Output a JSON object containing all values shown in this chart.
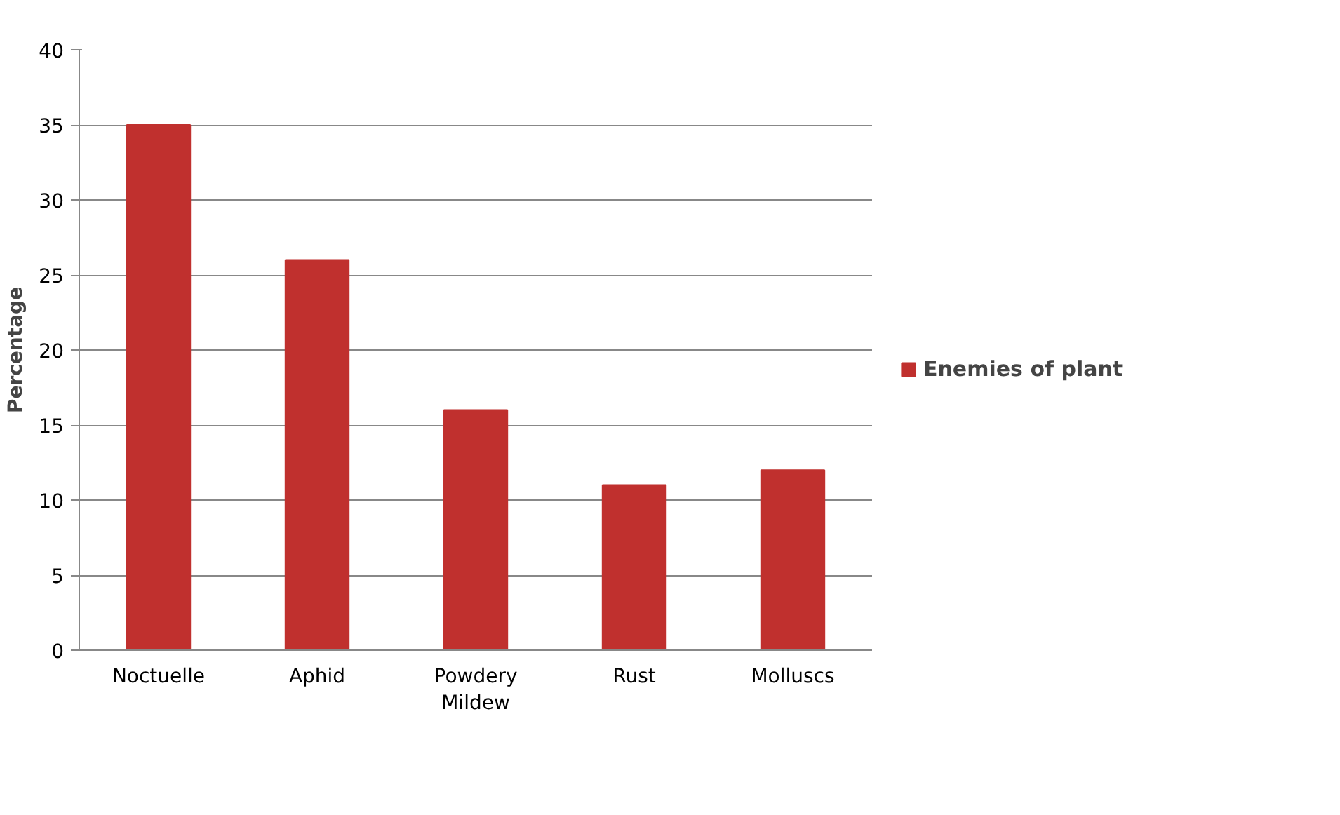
{
  "chart_data": {
    "type": "bar",
    "ylabel": "Percentage",
    "categories": [
      "Noctuelle",
      "Aphid",
      "Powdery Mildew",
      "Rust",
      "Molluscs"
    ],
    "series": [
      {
        "name": "Enemies of plant",
        "color": "#c0302e",
        "values": [
          35,
          26,
          16,
          11,
          12
        ]
      }
    ],
    "ylim": [
      0,
      40
    ],
    "yticks": [
      0,
      5,
      10,
      15,
      20,
      25,
      30,
      35,
      40
    ],
    "grid": "y",
    "legend": "right"
  }
}
